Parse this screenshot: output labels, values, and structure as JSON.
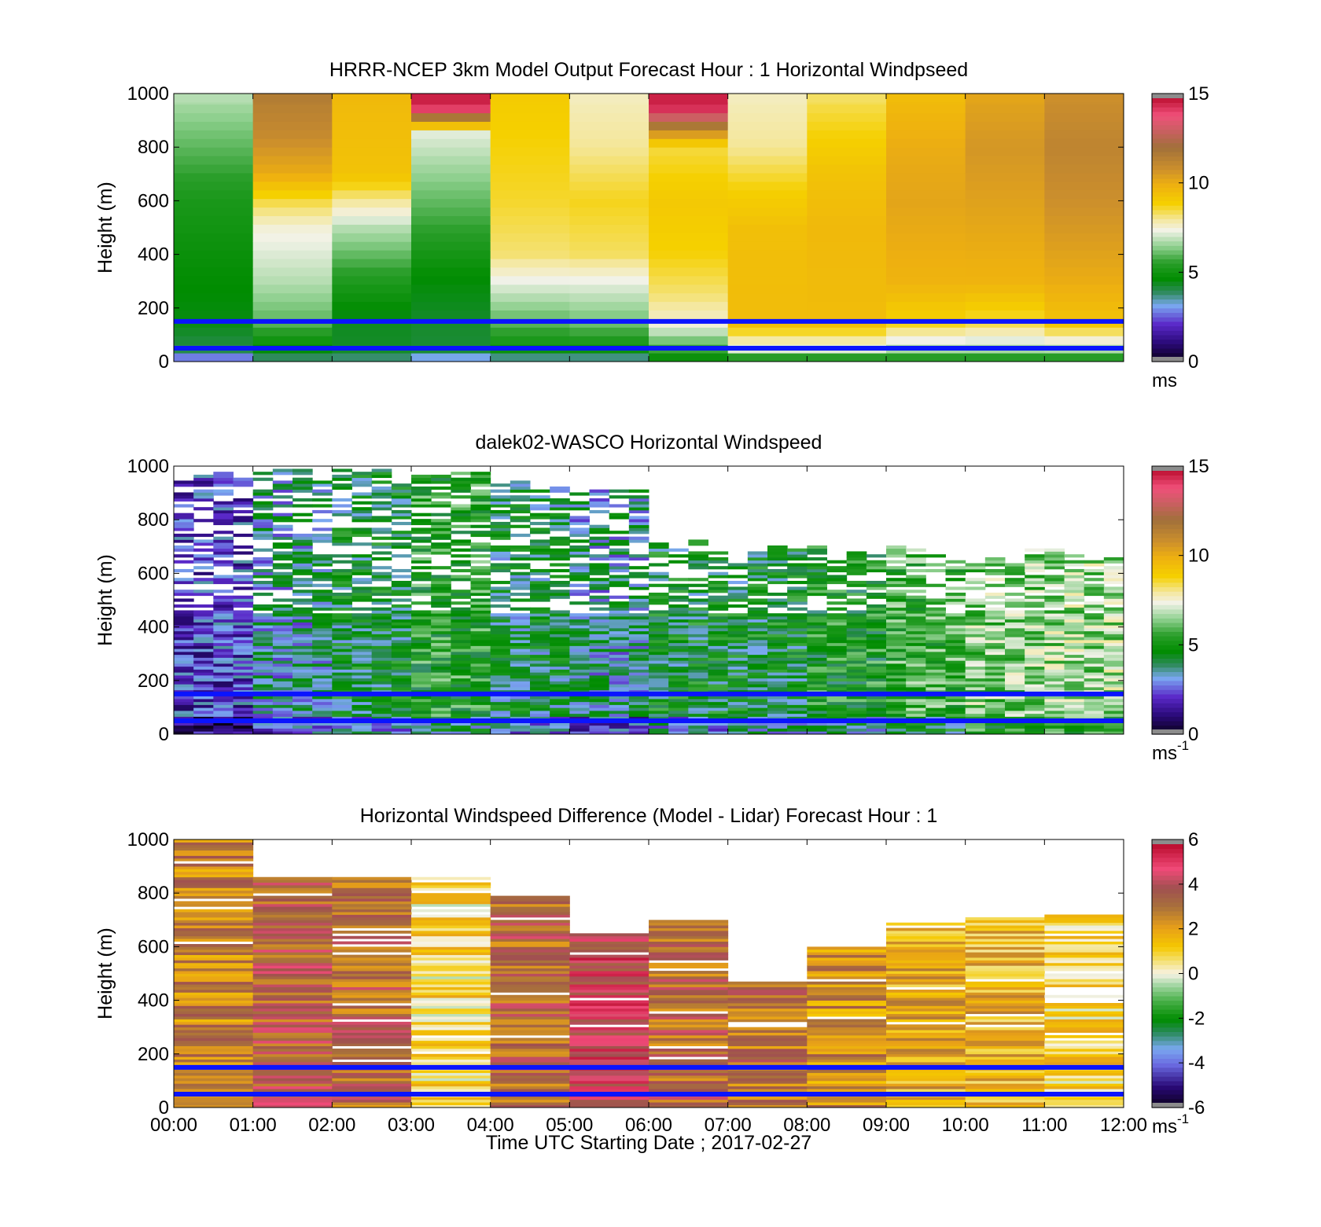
{
  "figure": {
    "xlabel": "Time UTC  Starting Date ; 2017-02-27"
  },
  "chart_data": [
    {
      "type": "heatmap",
      "title": "HRRR-NCEP 3km Model Output   Forecast Hour : 1 Horizontal Windpseed",
      "ylabel": "Height (m)",
      "ylim": [
        0,
        1000
      ],
      "yticks": [
        "0",
        "200",
        "400",
        "600",
        "800",
        "1000"
      ],
      "xlim": [
        "00:00",
        "12:00"
      ],
      "colorbar": {
        "range": [
          0,
          15
        ],
        "ticks": [
          "0",
          "5",
          "10",
          "15"
        ],
        "unit": "ms",
        "unit_sup": "",
        "colormap": "speed"
      },
      "reference_lines_m": [
        50,
        150
      ],
      "data_style": "model",
      "columns_ms_by_height": [
        [
          {
            "h": 0,
            "v": 2
          },
          {
            "h": 40,
            "v": 4
          },
          {
            "h": 150,
            "v": 4.5
          },
          {
            "h": 300,
            "v": 4.7
          },
          {
            "h": 600,
            "v": 5.2
          },
          {
            "h": 800,
            "v": 6
          },
          {
            "h": 1000,
            "v": 6.8
          }
        ],
        [
          {
            "h": 0,
            "v": 3.5
          },
          {
            "h": 40,
            "v": 4.5
          },
          {
            "h": 150,
            "v": 6
          },
          {
            "h": 300,
            "v": 6.8
          },
          {
            "h": 500,
            "v": 7.5
          },
          {
            "h": 600,
            "v": 8.5
          },
          {
            "h": 700,
            "v": 10
          },
          {
            "h": 850,
            "v": 11
          },
          {
            "h": 1000,
            "v": 11.5
          }
        ],
        [
          {
            "h": 0,
            "v": 3.5
          },
          {
            "h": 40,
            "v": 4.3
          },
          {
            "h": 150,
            "v": 4.4
          },
          {
            "h": 300,
            "v": 5.3
          },
          {
            "h": 500,
            "v": 6.8
          },
          {
            "h": 600,
            "v": 8
          },
          {
            "h": 700,
            "v": 9.3
          },
          {
            "h": 1000,
            "v": 9.6
          }
        ],
        [
          {
            "h": 0,
            "v": 2.5
          },
          {
            "h": 40,
            "v": 4.2
          },
          {
            "h": 150,
            "v": 4.3
          },
          {
            "h": 300,
            "v": 4.6
          },
          {
            "h": 500,
            "v": 5.6
          },
          {
            "h": 700,
            "v": 6.5
          },
          {
            "h": 850,
            "v": 7.2
          },
          {
            "h": 950,
            "v": 14.5
          }
        ],
        [
          {
            "h": 0,
            "v": 3
          },
          {
            "h": 40,
            "v": 4.8
          },
          {
            "h": 150,
            "v": 6
          },
          {
            "h": 300,
            "v": 7.3
          },
          {
            "h": 400,
            "v": 8.2
          },
          {
            "h": 600,
            "v": 8.6
          },
          {
            "h": 1000,
            "v": 9
          }
        ],
        [
          {
            "h": 0,
            "v": 3
          },
          {
            "h": 40,
            "v": 4.8
          },
          {
            "h": 150,
            "v": 6.2
          },
          {
            "h": 300,
            "v": 7.3
          },
          {
            "h": 400,
            "v": 8.3
          },
          {
            "h": 600,
            "v": 8.7
          },
          {
            "h": 800,
            "v": 8
          },
          {
            "h": 1000,
            "v": 7.7
          }
        ],
        [
          {
            "h": 0,
            "v": 4.5
          },
          {
            "h": 40,
            "v": 5.5
          },
          {
            "h": 150,
            "v": 7.6
          },
          {
            "h": 250,
            "v": 8.2
          },
          {
            "h": 400,
            "v": 8.8
          },
          {
            "h": 600,
            "v": 9.1
          },
          {
            "h": 800,
            "v": 8.5
          },
          {
            "h": 950,
            "v": 14.5
          }
        ],
        [
          {
            "h": 0,
            "v": 4.5
          },
          {
            "h": 40,
            "v": 7
          },
          {
            "h": 150,
            "v": 9.5
          },
          {
            "h": 500,
            "v": 9.4
          },
          {
            "h": 650,
            "v": 8.8
          },
          {
            "h": 800,
            "v": 8
          },
          {
            "h": 1000,
            "v": 7.7
          }
        ],
        [
          {
            "h": 0,
            "v": 4.5
          },
          {
            "h": 40,
            "v": 7
          },
          {
            "h": 150,
            "v": 9.5
          },
          {
            "h": 500,
            "v": 9.6
          },
          {
            "h": 700,
            "v": 9.3
          },
          {
            "h": 850,
            "v": 8.8
          },
          {
            "h": 1000,
            "v": 8.3
          }
        ],
        [
          {
            "h": 0,
            "v": 4.8
          },
          {
            "h": 40,
            "v": 6.5
          },
          {
            "h": 150,
            "v": 8.8
          },
          {
            "h": 300,
            "v": 9.8
          },
          {
            "h": 600,
            "v": 10.2
          },
          {
            "h": 800,
            "v": 10
          },
          {
            "h": 1000,
            "v": 9.5
          }
        ],
        [
          {
            "h": 0,
            "v": 4.8
          },
          {
            "h": 40,
            "v": 6.5
          },
          {
            "h": 150,
            "v": 8.5
          },
          {
            "h": 300,
            "v": 9.8
          },
          {
            "h": 600,
            "v": 10.3
          },
          {
            "h": 800,
            "v": 10.6
          },
          {
            "h": 1000,
            "v": 10.2
          }
        ],
        [
          {
            "h": 0,
            "v": 4.8
          },
          {
            "h": 40,
            "v": 6.5
          },
          {
            "h": 150,
            "v": 9.3
          },
          {
            "h": 300,
            "v": 10
          },
          {
            "h": 600,
            "v": 10.8
          },
          {
            "h": 800,
            "v": 11.2
          },
          {
            "h": 1000,
            "v": 10.8
          }
        ]
      ]
    },
    {
      "type": "heatmap",
      "title": "dalek02-WASCO  Horizontal Windspeed",
      "ylabel": "Height (m)",
      "ylim": [
        0,
        1000
      ],
      "yticks": [
        "0",
        "200",
        "400",
        "600",
        "800",
        "1000"
      ],
      "xlim": [
        "00:00",
        "12:00"
      ],
      "colorbar": {
        "range": [
          0,
          15
        ],
        "ticks": [
          "0",
          "5",
          "10",
          "15"
        ],
        "unit": "ms",
        "unit_sup": "-1",
        "colormap": "speed"
      },
      "reference_lines_m": [
        50,
        150
      ],
      "data_style": "lidar",
      "columns_per_hour": 4,
      "top_height_m_by_hour": [
        1000,
        1000,
        1000,
        1000,
        960,
        960,
        750,
        700,
        700,
        700,
        700,
        700
      ],
      "mean_ms_by_hour": [
        2.2,
        3.6,
        4.4,
        5.2,
        4.2,
        3.6,
        4.5,
        4.5,
        5.0,
        5.6,
        6.3,
        6.6
      ],
      "spread_ms": 1.4
    },
    {
      "type": "heatmap",
      "title": "Horizontal Windspeed Difference (Model - Lidar) Forecast Hour : 1",
      "ylabel": "Height (m)",
      "ylim": [
        0,
        1000
      ],
      "yticks": [
        "0",
        "200",
        "400",
        "600",
        "800",
        "1000"
      ],
      "xlim": [
        "00:00",
        "12:00"
      ],
      "xticks": [
        "00:00",
        "01:00",
        "02:00",
        "03:00",
        "04:00",
        "05:00",
        "06:00",
        "07:00",
        "08:00",
        "09:00",
        "10:00",
        "11:00",
        "12:00"
      ],
      "colorbar": {
        "range": [
          -6,
          6
        ],
        "ticks": [
          "-6",
          "-4",
          "-2",
          "0",
          "2",
          "4",
          "6"
        ],
        "unit": "ms",
        "unit_sup": "-1",
        "colormap": "diff"
      },
      "reference_lines_m": [
        50,
        150
      ],
      "data_style": "diff",
      "top_height_m_by_hour": [
        1000,
        860,
        860,
        860,
        790,
        650,
        700,
        470,
        600,
        690,
        720,
        720
      ],
      "mean_diff_ms_by_hour": [
        2.6,
        3.5,
        3.2,
        0.8,
        3.3,
        4.4,
        3.2,
        3.0,
        2.4,
        1.8,
        1.6,
        0.9
      ],
      "spread_ms": 1.2
    }
  ]
}
